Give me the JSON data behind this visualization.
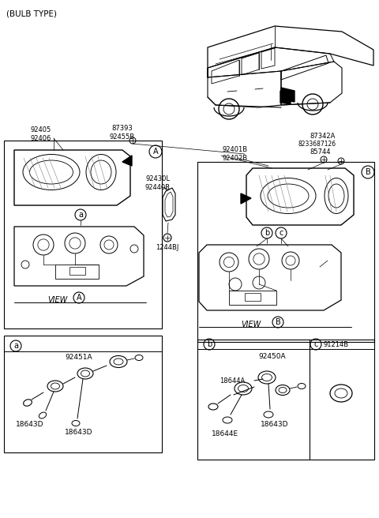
{
  "bg_color": "#ffffff",
  "fig_width": 4.8,
  "fig_height": 6.56,
  "dpi": 100,
  "bulb_type": "(BULB TYPE)",
  "labels": {
    "92405_92406": "92405\n92406",
    "87393_92455B": "87393\n92455B",
    "92430L_92440R": "92430L\n92440R",
    "92401B_92402B": "92401B\n92402B",
    "87342A": "87342A",
    "82336_87126": "8233687126",
    "85744": "85744",
    "1244BJ": "1244BJ",
    "91214B": "91214B",
    "92451A": "92451A",
    "18643D": "18643D",
    "92450A": "92450A",
    "18644A": "18644A",
    "18644E": "18644E"
  }
}
